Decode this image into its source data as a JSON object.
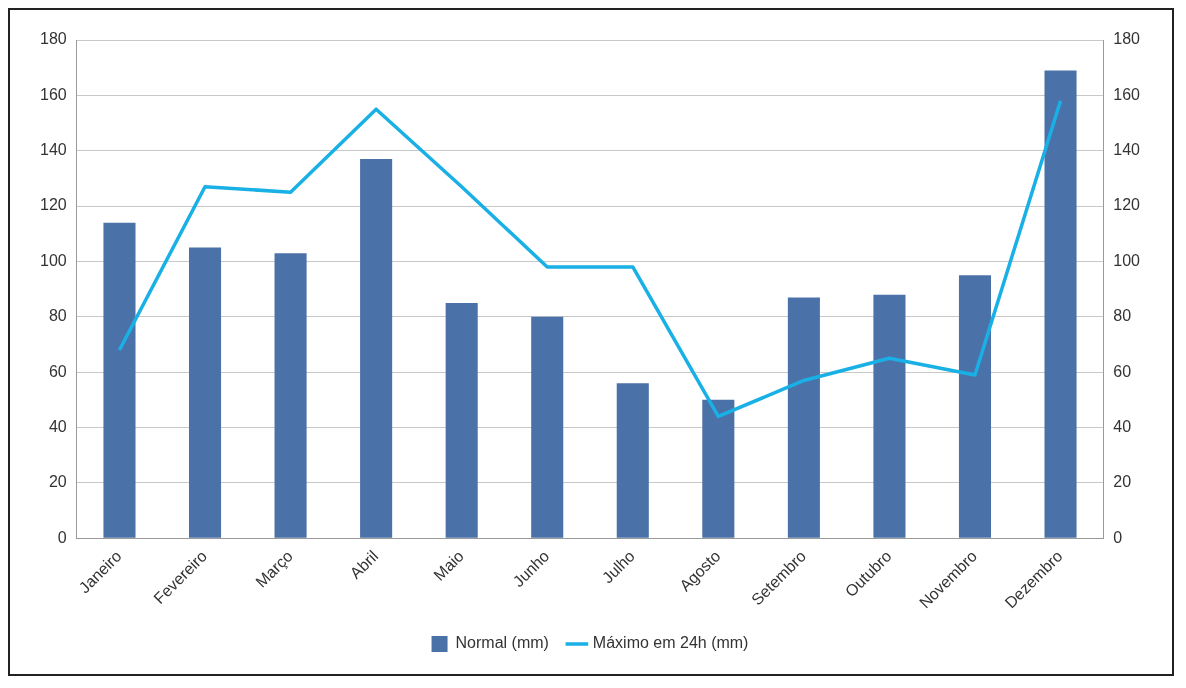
{
  "chart_data": {
    "type": "bar",
    "categories": [
      "Janeiro",
      "Fevereiro",
      "Março",
      "Abril",
      "Maio",
      "Junho",
      "Julho",
      "Agosto",
      "Setembro",
      "Outubro",
      "Novembro",
      "Dezembro"
    ],
    "series": [
      {
        "name": "Normal (mm)",
        "color": "#4a72a8",
        "values": [
          114,
          105,
          103,
          137,
          85,
          80,
          56,
          50,
          87,
          88,
          95,
          169
        ]
      },
      {
        "name": "Máximo em 24h (mm)",
        "type": "line",
        "axis": "y2",
        "color": "#19b0e6",
        "values": [
          68,
          127,
          125,
          155,
          127,
          98,
          98,
          44,
          57,
          65,
          59,
          158
        ]
      }
    ],
    "ylim": [
      0,
      180
    ],
    "yticks": [
      0,
      20,
      40,
      60,
      80,
      100,
      120,
      140,
      160,
      180
    ],
    "y2lim": [
      0,
      180
    ],
    "y2ticks": [
      0,
      20,
      40,
      60,
      80,
      100,
      120,
      140,
      160,
      180
    ],
    "grid": "y",
    "legend": "bottom",
    "marker": "none"
  }
}
